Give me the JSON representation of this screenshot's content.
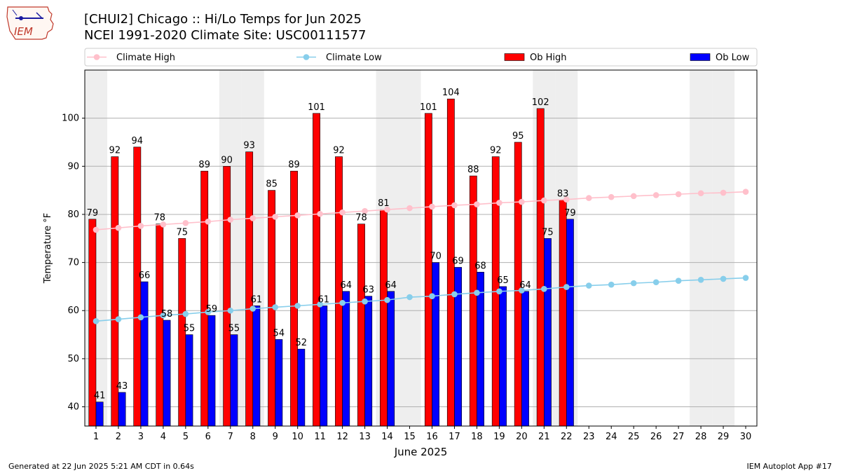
{
  "header": {
    "title_line1": "[CHUI2] Chicago :: Hi/Lo Temps for Jun 2025",
    "title_line2": "NCEI 1991-2020 Climate Site: USC00111577",
    "logo_text": "IEM"
  },
  "footer": {
    "generated": "Generated at 22 Jun 2025 5:21 AM CDT in 0.64s",
    "app": "IEM Autoplot App #17"
  },
  "colors": {
    "ob_high": "#ff0000",
    "ob_low": "#0000ff",
    "climate_high": "#ffc0cb",
    "climate_low": "#87ceeb",
    "weekend_shade": "#eeeeee",
    "grid": "#b0b0b0"
  },
  "chart_data": {
    "type": "bar",
    "xlabel": "June 2025",
    "ylabel": "Temperature °F",
    "xlim": [
      0.5,
      30.5
    ],
    "ylim": [
      36,
      110
    ],
    "yticks": [
      40,
      50,
      60,
      70,
      80,
      90,
      100
    ],
    "grid": "horizontal",
    "legend_position": "top",
    "weekend_days": [
      1,
      7,
      8,
      14,
      15,
      21,
      22,
      28,
      29
    ],
    "days": [
      1,
      2,
      3,
      4,
      5,
      6,
      7,
      8,
      9,
      10,
      11,
      12,
      13,
      14,
      15,
      16,
      17,
      18,
      19,
      20,
      21,
      22,
      23,
      24,
      25,
      26,
      27,
      28,
      29,
      30
    ],
    "series": [
      {
        "name": "Climate High",
        "kind": "line",
        "values": [
          76.8,
          77.2,
          77.6,
          77.9,
          78.2,
          78.5,
          78.9,
          79.2,
          79.5,
          79.8,
          80.1,
          80.4,
          80.7,
          81.0,
          81.3,
          81.6,
          81.9,
          82.1,
          82.4,
          82.6,
          82.9,
          83.1,
          83.4,
          83.6,
          83.8,
          84.0,
          84.2,
          84.4,
          84.5,
          84.7
        ]
      },
      {
        "name": "Climate Low",
        "kind": "line",
        "values": [
          57.8,
          58.2,
          58.6,
          59.0,
          59.3,
          59.7,
          60.0,
          60.4,
          60.7,
          61.0,
          61.3,
          61.6,
          61.9,
          62.2,
          62.8,
          63.0,
          63.4,
          63.7,
          64.0,
          64.2,
          64.5,
          64.9,
          65.2,
          65.4,
          65.7,
          65.9,
          66.2,
          66.4,
          66.6,
          66.8
        ]
      },
      {
        "name": "Ob High",
        "kind": "bar",
        "values": [
          79,
          92,
          94,
          78,
          75,
          89,
          90,
          93,
          85,
          89,
          101,
          92,
          78,
          81,
          null,
          101,
          104,
          88,
          92,
          95,
          102,
          83,
          null,
          null,
          null,
          null,
          null,
          null,
          null,
          null
        ]
      },
      {
        "name": "Ob Low",
        "kind": "bar",
        "values": [
          41,
          43,
          66,
          58,
          55,
          59,
          55,
          61,
          54,
          52,
          61,
          64,
          63,
          64,
          null,
          70,
          69,
          68,
          65,
          64,
          75,
          79,
          null,
          null,
          null,
          null,
          null,
          null,
          null,
          null
        ]
      }
    ]
  }
}
